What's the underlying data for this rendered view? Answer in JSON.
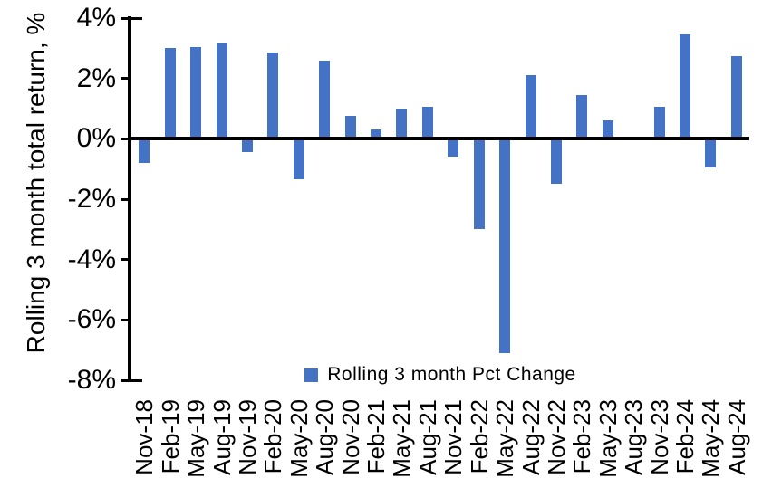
{
  "chart_data": {
    "type": "bar",
    "title": "",
    "ylabel": "Rolling 3 month total return, %",
    "xlabel": "",
    "categories": [
      "Nov-18",
      "Feb-19",
      "May-19",
      "Aug-19",
      "Nov-19",
      "Feb-20",
      "May-20",
      "Aug-20",
      "Nov-20",
      "Feb-21",
      "May-21",
      "Aug-21",
      "Nov-21",
      "Feb-22",
      "May-22",
      "Aug-22",
      "Nov-22",
      "Feb-23",
      "May-23",
      "Aug-23",
      "Nov-23",
      "Feb-24",
      "May-24",
      "Aug-24"
    ],
    "series": [
      {
        "name": "Rolling 3 month Pct Change",
        "values": [
          -0.8,
          3.0,
          3.05,
          3.15,
          -0.45,
          2.85,
          -1.35,
          2.6,
          0.75,
          0.3,
          1.0,
          1.05,
          -0.6,
          -3.0,
          -7.1,
          2.1,
          -1.5,
          1.45,
          0.6,
          0.0,
          1.05,
          3.45,
          -0.95,
          2.75
        ]
      }
    ],
    "ylim": [
      -8,
      4
    ],
    "yticks": [
      4,
      2,
      0,
      -2,
      -4,
      -6,
      -8
    ],
    "ytick_labels": [
      "4%",
      "2%",
      "0%",
      "-2%",
      "-4%",
      "-6%",
      "-8%"
    ],
    "grid": false,
    "legend_position": "bottom-center",
    "colors": {
      "bar": "#4472C4",
      "axis": "#000000",
      "background": "#FFFFFF",
      "text": "#000000"
    }
  }
}
